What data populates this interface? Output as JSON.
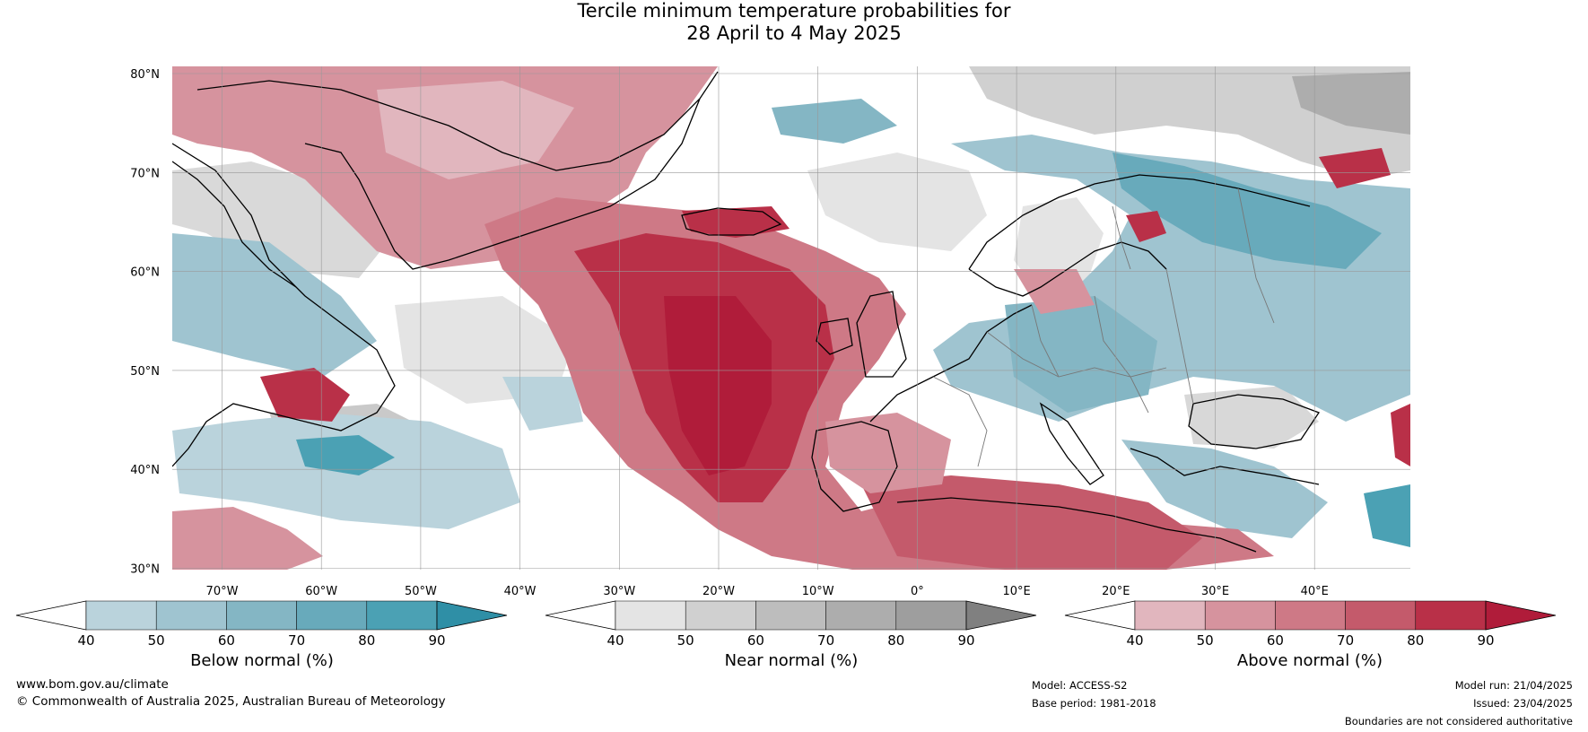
{
  "title": {
    "line1": "Tercile minimum temperature probabilities for",
    "line2": "28 April to 4 May 2025"
  },
  "map": {
    "lat_labels": [
      "80°N",
      "70°N",
      "60°N",
      "50°N",
      "40°N",
      "30°N"
    ],
    "lon_labels": [
      "70°W",
      "60°W",
      "50°W",
      "40°W",
      "30°W",
      "20°W",
      "10°W",
      "0°",
      "10°E",
      "20°E",
      "30°E",
      "40°E"
    ],
    "colors": {
      "land_outline": "#000000",
      "borders": "#777777",
      "grid": "#999999"
    }
  },
  "colorbars": [
    {
      "label": "Below normal (%)",
      "ticks": [
        "40",
        "50",
        "60",
        "70",
        "80",
        "90"
      ],
      "colors": [
        "#ffffff",
        "#bad3dc",
        "#9fc4d0",
        "#84b6c4",
        "#68aabb",
        "#4ba1b4",
        "#2f8fa6"
      ]
    },
    {
      "label": "Near normal (%)",
      "ticks": [
        "40",
        "50",
        "60",
        "70",
        "80",
        "90"
      ],
      "colors": [
        "#ffffff",
        "#e4e4e4",
        "#d0d0d0",
        "#bdbdbd",
        "#adadad",
        "#9e9e9e",
        "#808080"
      ]
    },
    {
      "label": "Above normal (%)",
      "ticks": [
        "40",
        "50",
        "60",
        "70",
        "80",
        "90"
      ],
      "colors": [
        "#ffffff",
        "#e1b6be",
        "#d6939e",
        "#ce7986",
        "#c45a6b",
        "#b93048",
        "#b01c3a"
      ]
    }
  ],
  "footer": {
    "website": "www.bom.gov.au/climate",
    "copyright": "© Commonwealth of Australia 2025, Australian Bureau of Meteorology",
    "model": "Model: ACCESS-S2",
    "base_period": "Base period: 1981-2018",
    "model_run": "Model run: 21/04/2025",
    "issued": "Issued: 23/04/2025",
    "disclaimer": "Boundaries are not considered authoritative"
  }
}
